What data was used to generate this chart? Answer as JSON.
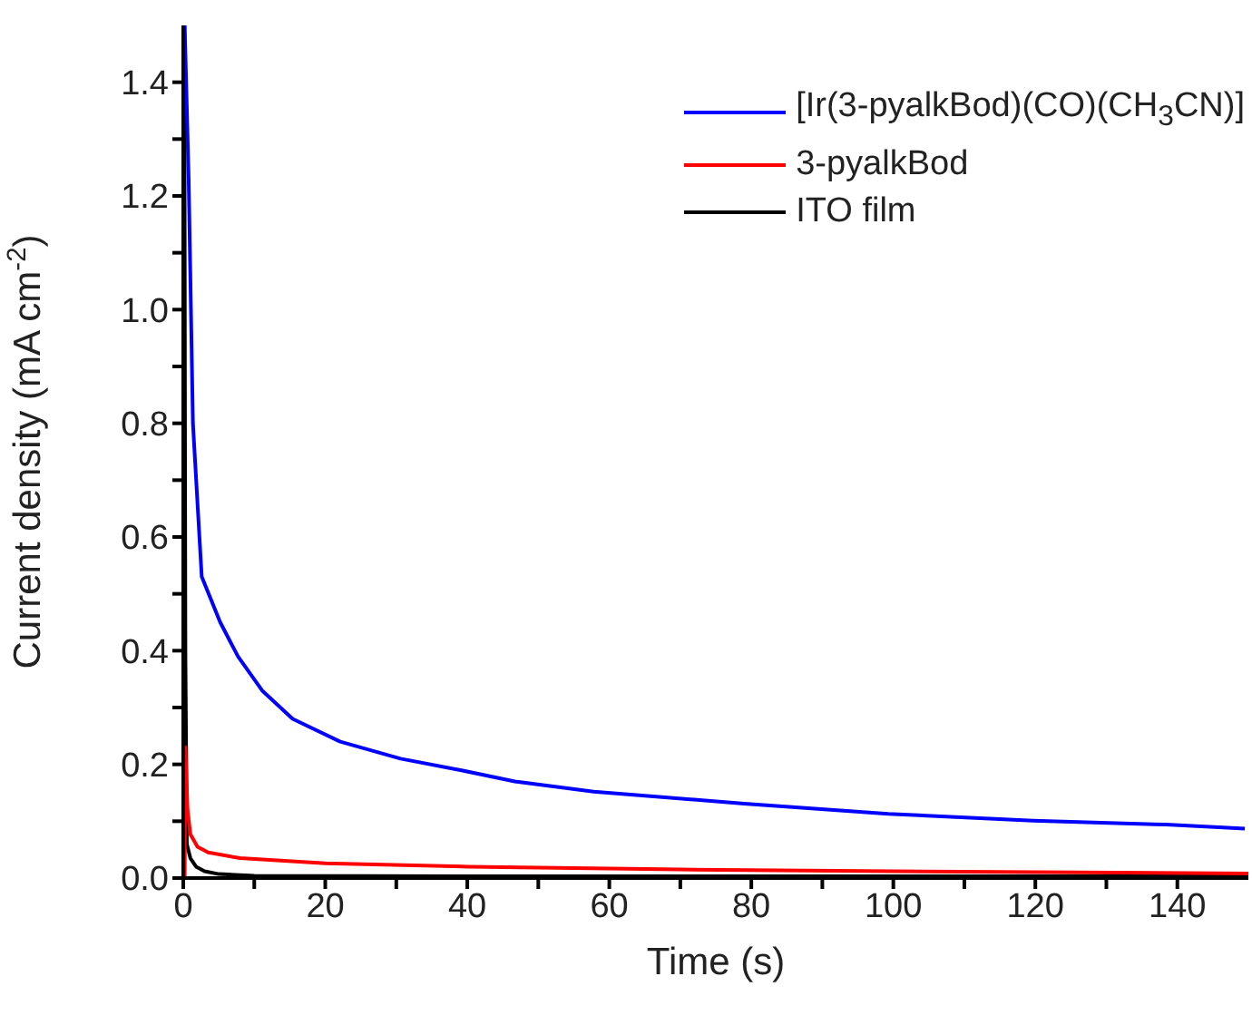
{
  "chart_data": {
    "type": "line",
    "xlabel": "Time (s)",
    "ylabel": "Current density (mA cm$^{-2}$)",
    "xlim": [
      0,
      150
    ],
    "ylim": [
      0,
      1.5
    ],
    "xticks": [
      0,
      {
        "value": 10,
        "label": null
      },
      20,
      {
        "value": 30,
        "label": null
      },
      40,
      {
        "value": 50,
        "label": null
      },
      60,
      {
        "value": 70,
        "label": null
      },
      80,
      {
        "value": 90,
        "label": null
      },
      100,
      {
        "value": 110,
        "label": null
      },
      120,
      {
        "value": 130,
        "label": null
      },
      140
    ],
    "yticks": [
      {
        "value": 0,
        "label": "0.0"
      },
      {
        "value": 0.1,
        "label": null
      },
      {
        "value": 0.2,
        "label": "0.2"
      },
      {
        "value": 0.3,
        "label": null
      },
      {
        "value": 0.4,
        "label": "0.4"
      },
      {
        "value": 0.5,
        "label": null
      },
      {
        "value": 0.6,
        "label": "0.6"
      },
      {
        "value": 0.7,
        "label": null
      },
      {
        "value": 0.8,
        "label": "0.8"
      },
      {
        "value": 0.9,
        "label": null
      },
      {
        "value": 1.0,
        "label": "1.0"
      },
      {
        "value": 1.1,
        "label": null
      },
      {
        "value": 1.2,
        "label": "1.2"
      },
      {
        "value": 1.3,
        "label": null
      },
      {
        "value": 1.4,
        "label": "1.4"
      }
    ],
    "grid": false,
    "legend": "top right",
    "marker": "none",
    "line_style": "solid",
    "series": [
      {
        "name": "[Ir(3-pyalkBod)(CO)(CH$_{3}$CN)]",
        "color": "#0000ff",
        "x": [
          0.2,
          0.76,
          1.36,
          2.6,
          5.2,
          7.7,
          11.1,
          15.4,
          22.1,
          30.6,
          39,
          46.7,
          57.8,
          79,
          99.3,
          119.7,
          138.4,
          149.5
        ],
        "values": [
          1.5,
          1.23,
          0.8,
          0.53,
          0.45,
          0.39,
          0.33,
          0.28,
          0.24,
          0.21,
          0.19,
          0.17,
          0.152,
          0.131,
          0.113,
          0.101,
          0.094,
          0.087
        ]
      },
      {
        "name": "3-pyalkBod",
        "color": "#ff0000",
        "x": [
          0.2,
          0.3,
          0.6,
          1,
          2,
          3.5,
          8,
          20,
          40,
          70,
          100,
          150
        ],
        "values": [
          0,
          0.23,
          0.12,
          0.077,
          0.055,
          0.045,
          0.035,
          0.026,
          0.02,
          0.015,
          0.012,
          0.008
        ]
      },
      {
        "name": "ITO film",
        "color": "#000000",
        "x": [
          0,
          0.15,
          0.3,
          0.5,
          1,
          1.8,
          3,
          5,
          10,
          40,
          150
        ],
        "values": [
          0,
          1.5,
          0.4,
          0.06,
          0.035,
          0.02,
          0.012,
          0.007,
          0.004,
          0.003,
          0.003
        ]
      }
    ]
  }
}
